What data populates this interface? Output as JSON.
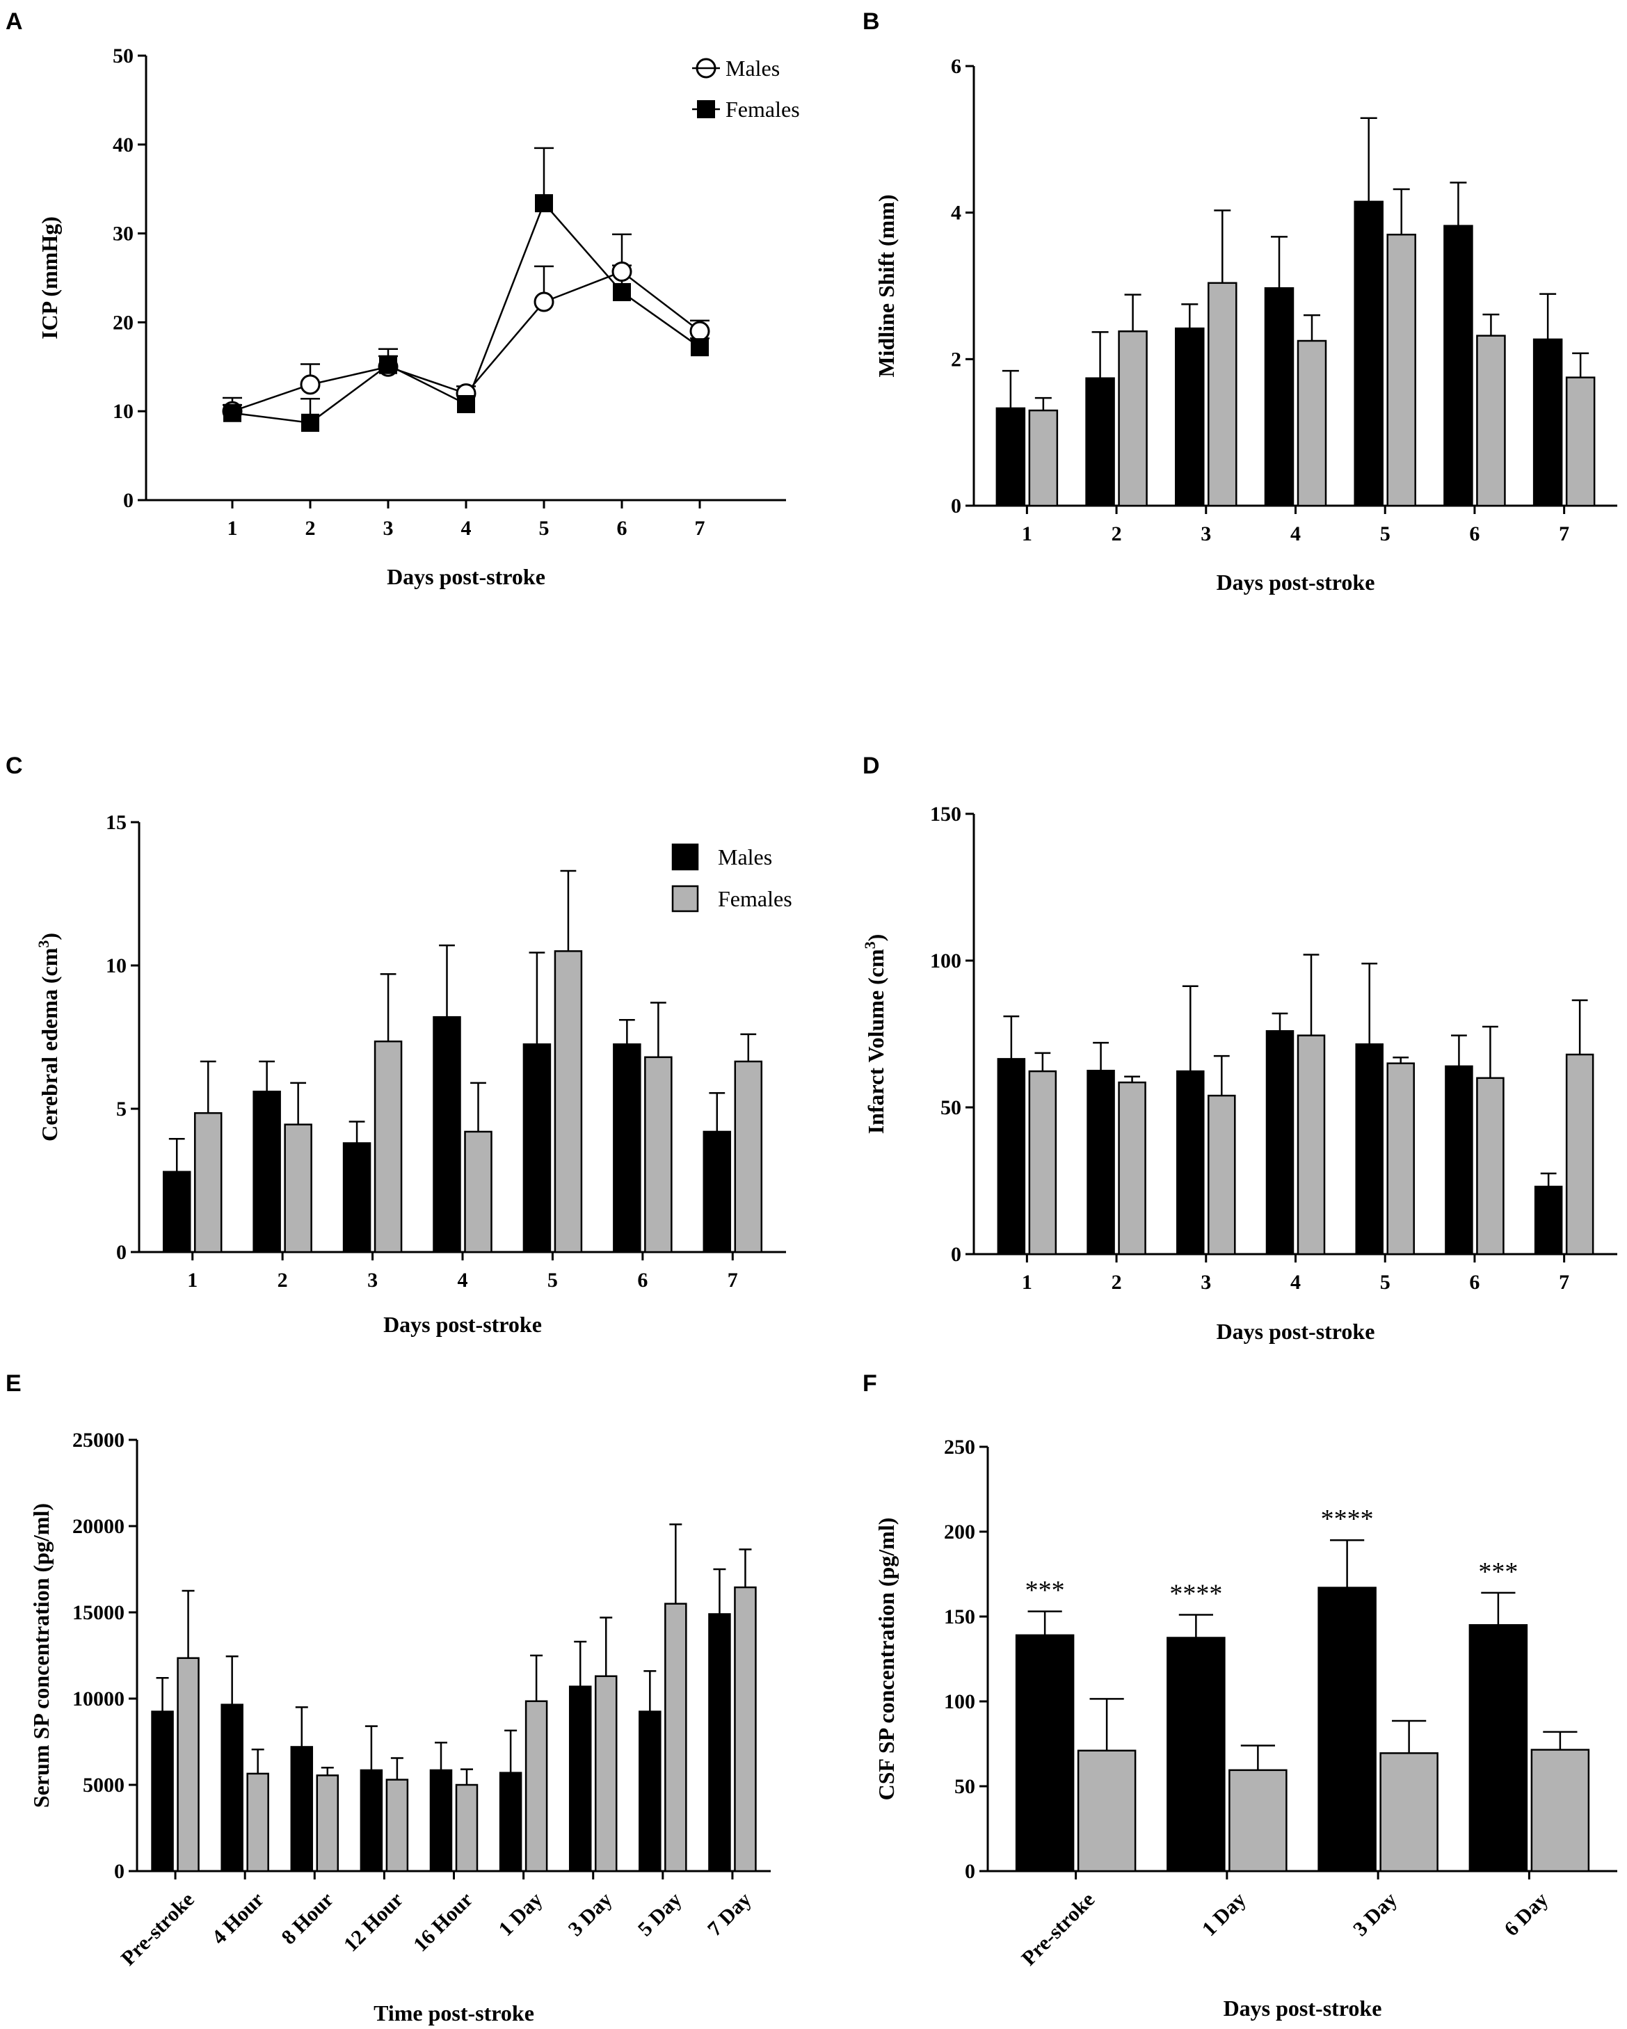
{
  "colors": {
    "males": "#000000",
    "females": "#b3b3b3",
    "axis": "#000000"
  },
  "legend": {
    "males": "Males",
    "females": "Females"
  },
  "chart_data": [
    {
      "panel": "A",
      "type": "line",
      "xlabel": "Days post-stroke",
      "ylabel": "ICP (mmHg)",
      "categories": [
        "1",
        "2",
        "3",
        "4",
        "5",
        "6",
        "7"
      ],
      "ylim": [
        0,
        50
      ],
      "yticks": [
        0,
        10,
        20,
        30,
        40,
        50
      ],
      "legend_position": "top-right",
      "series": [
        {
          "name": "Males",
          "marker": "open-circle",
          "values": [
            10,
            13,
            15,
            12,
            22.3,
            25.7,
            19
          ],
          "errors": [
            1.5,
            2.3,
            2,
            0.8,
            4,
            4.2,
            1.2
          ]
        },
        {
          "name": "Females",
          "marker": "filled-square",
          "values": [
            9.8,
            8.7,
            15.2,
            10.8,
            33.4,
            23.4,
            17.2
          ],
          "errors": [
            0.9,
            2.7,
            1,
            1,
            6.2,
            3,
            1
          ]
        }
      ]
    },
    {
      "panel": "B",
      "type": "bar",
      "xlabel": "Days post-stroke",
      "ylabel": "Midline Shift (mm)",
      "categories": [
        "1",
        "2",
        "3",
        "4",
        "5",
        "6",
        "7"
      ],
      "ylim": [
        0,
        6
      ],
      "yticks": [
        0,
        2,
        4,
        6
      ],
      "series": [
        {
          "name": "Males",
          "values": [
            1.33,
            1.74,
            2.42,
            2.97,
            4.15,
            3.82,
            2.27
          ],
          "errors": [
            0.51,
            0.63,
            0.33,
            0.7,
            1.14,
            0.59,
            0.62
          ]
        },
        {
          "name": "Females",
          "values": [
            1.3,
            2.38,
            3.04,
            2.25,
            3.7,
            2.32,
            1.75
          ],
          "errors": [
            0.17,
            0.5,
            0.99,
            0.35,
            0.62,
            0.29,
            0.33
          ]
        }
      ]
    },
    {
      "panel": "C",
      "type": "bar",
      "xlabel": "Days post-stroke",
      "ylabel": "Cerebral edema (cm",
      "ylabel_sup": "3",
      "ylabel_end": ")",
      "categories": [
        "1",
        "2",
        "3",
        "4",
        "5",
        "6",
        "7"
      ],
      "ylim": [
        0,
        15
      ],
      "yticks": [
        0,
        5,
        10,
        15
      ],
      "legend_position": "top-right",
      "series": [
        {
          "name": "Males",
          "values": [
            2.8,
            5.6,
            3.8,
            8.2,
            7.25,
            7.25,
            4.2
          ],
          "errors": [
            1.15,
            1.05,
            0.75,
            2.5,
            3.2,
            0.85,
            1.35
          ]
        },
        {
          "name": "Females",
          "values": [
            4.85,
            4.45,
            7.35,
            4.2,
            10.5,
            6.8,
            6.65
          ],
          "errors": [
            1.8,
            1.45,
            2.35,
            1.7,
            2.8,
            1.9,
            0.95
          ]
        }
      ]
    },
    {
      "panel": "D",
      "type": "bar",
      "xlabel": "Days post-stroke",
      "ylabel": "Infarct Volume (cm",
      "ylabel_sup": "3",
      "ylabel_end": ")",
      "categories": [
        "1",
        "2",
        "3",
        "4",
        "5",
        "6",
        "7"
      ],
      "ylim": [
        0,
        150
      ],
      "yticks": [
        0,
        50,
        100,
        150
      ],
      "series": [
        {
          "name": "Males",
          "values": [
            66.5,
            62.5,
            62.3,
            76,
            71.5,
            64,
            23
          ],
          "errors": [
            14.5,
            9.5,
            29,
            6,
            27.5,
            10.5,
            4.5
          ]
        },
        {
          "name": "Females",
          "values": [
            62.3,
            58.5,
            54,
            74.5,
            65,
            60,
            68
          ],
          "errors": [
            6.2,
            2,
            13.5,
            27.5,
            2,
            17.5,
            18.5
          ]
        }
      ]
    },
    {
      "panel": "E",
      "type": "bar",
      "xlabel": "Time post-stroke",
      "ylabel": "Serum SP concentration (pg/ml)",
      "categories": [
        "Pre-stroke",
        "4 Hour",
        "8 Hour",
        "12 Hour",
        "16 Hour",
        "1 Day",
        "3 Day",
        "5 Day",
        "7 Day"
      ],
      "ylim": [
        0,
        25000
      ],
      "yticks": [
        0,
        5000,
        10000,
        15000,
        20000,
        25000
      ],
      "series": [
        {
          "name": "Males",
          "values": [
            9250,
            9650,
            7200,
            5850,
            5850,
            5700,
            10700,
            9250,
            14900
          ],
          "errors": [
            1950,
            2800,
            2300,
            2550,
            1600,
            2450,
            2600,
            2350,
            2600
          ]
        },
        {
          "name": "Females",
          "values": [
            12350,
            5650,
            5550,
            5300,
            5000,
            9850,
            11300,
            15500,
            16450
          ],
          "errors": [
            3900,
            1400,
            450,
            1250,
            900,
            2650,
            3400,
            4600,
            2200
          ]
        }
      ]
    },
    {
      "panel": "F",
      "type": "bar",
      "xlabel": "Days post-stroke",
      "ylabel": "CSF SP concentration (pg/ml)",
      "categories": [
        "Pre-stroke",
        "1 Day",
        "3 Day",
        "6 Day"
      ],
      "ylim": [
        0,
        250
      ],
      "yticks": [
        0,
        50,
        100,
        150,
        200,
        250
      ],
      "annotations": [
        "***",
        "****",
        "****",
        "***"
      ],
      "series": [
        {
          "name": "Males",
          "values": [
            139,
            137.5,
            167,
            145
          ],
          "errors": [
            14,
            13.5,
            28,
            19
          ]
        },
        {
          "name": "Females",
          "values": [
            71,
            59.5,
            69.5,
            71.5
          ],
          "errors": [
            30.5,
            14.5,
            19,
            10.5
          ]
        }
      ]
    }
  ]
}
